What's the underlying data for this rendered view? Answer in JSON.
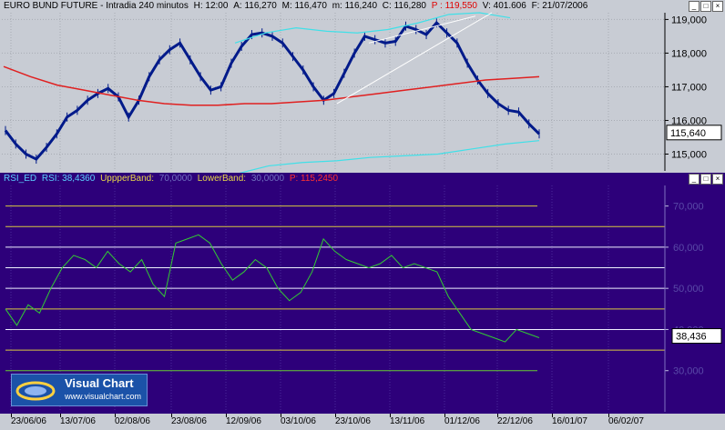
{
  "price_pane": {
    "title": "EURO BUND FUTURE - Intradia 240 minutos",
    "h_label": "H: 12:00",
    "a_label": "A: 116,270",
    "mx_label": "M: 116,470",
    "m_label": "m: 116,240",
    "c_label": "C: 116,280",
    "p_label": "P : 119,550",
    "v_label": "V: 401.606",
    "f_label": "F: 21/07/2006",
    "current_value": "115,640",
    "colors": {
      "candles": "#001a8a",
      "ma": "#e02020",
      "bands": "#40e0e8",
      "trendlines": "#ffffff",
      "background": "#c8ccd4"
    }
  },
  "rsi_pane": {
    "title": "RSI_ED",
    "rsi_label": "RSI: 38,4360",
    "upper_label": "UppperBand:",
    "upper_value": "70,0000",
    "lower_label": "LowerBand:",
    "lower_value": "30,0000",
    "p_label": "P: 115,2450",
    "current_value": "38,436",
    "colors": {
      "line": "#33cc33",
      "hlines_yellow": "#d8c840",
      "hlines_white": "#f0f0ff",
      "hlines_green": "#66cc33",
      "background": "#2d007a"
    }
  },
  "logo": {
    "title": "Visual Chart",
    "url": "www.visualchart.com"
  },
  "window_buttons": {
    "minimize": "_",
    "maximize": "□",
    "close": "×"
  },
  "chart_data": [
    {
      "type": "line",
      "title": "EURO BUND FUTURE - Intradia 240 minutos",
      "xlabel": "",
      "ylabel": "",
      "x_ticks": [
        "23/06/06",
        "13/07/06",
        "02/08/06",
        "23/08/06",
        "12/09/06",
        "03/10/06",
        "23/10/06",
        "13/11/06",
        "01/12/06",
        "22/12/06",
        "16/01/07",
        "06/02/07"
      ],
      "y_ticks": [
        "115,000",
        "116,000",
        "117,000",
        "118,000",
        "119,000"
      ],
      "ylim": [
        114.5,
        119.2
      ],
      "grid": true,
      "series": [
        {
          "values": [
            115.7,
            115.3,
            115.0,
            114.85,
            115.2,
            115.6,
            116.1,
            116.3,
            116.6,
            116.8,
            116.95,
            116.7,
            116.1,
            116.6,
            117.3,
            117.8,
            118.1,
            118.3,
            117.8,
            117.3,
            116.9,
            117.0,
            117.7,
            118.2,
            118.55,
            118.6,
            118.5,
            118.3,
            117.9,
            117.5,
            117.0,
            116.6,
            116.8,
            117.4,
            118.0,
            118.5,
            118.4,
            118.3,
            118.35,
            118.8,
            118.7,
            118.55,
            118.9,
            118.6,
            118.3,
            117.7,
            117.2,
            116.8,
            116.5,
            116.3,
            116.25,
            115.9,
            115.6
          ]
        },
        {
          "values": [
            117.6,
            117.3,
            117.05,
            116.9,
            116.75,
            116.6,
            116.5,
            116.45,
            116.45,
            116.5,
            116.5,
            116.55,
            116.6,
            116.7,
            116.8,
            116.9,
            117.0,
            117.1,
            117.2,
            117.25,
            117.3
          ]
        },
        {
          "values": [
            118.3,
            118.6,
            118.75,
            118.65,
            118.6,
            118.7,
            118.9,
            119.15,
            119.2,
            119.05
          ]
        },
        {
          "values": [
            114.4,
            114.65,
            114.75,
            114.8,
            114.9,
            114.95,
            115.0,
            115.15,
            115.3,
            115.4
          ]
        }
      ]
    },
    {
      "type": "line",
      "title": "RSI_ED",
      "xlabel": "",
      "ylabel": "",
      "y_ticks": [
        "30,000",
        "40,000",
        "50,000",
        "60,000",
        "70,000"
      ],
      "ylim": [
        20,
        75
      ],
      "grid": true,
      "bands": [
        70,
        30
      ],
      "series": [
        {
          "name": "RSI",
          "values": [
            45,
            41,
            46,
            44,
            50,
            55,
            58,
            57,
            55,
            59,
            56,
            54,
            57,
            51,
            48,
            61,
            62,
            63,
            61,
            56,
            52,
            54,
            57,
            55,
            50,
            47,
            49,
            54,
            62,
            59,
            57,
            56,
            55,
            56,
            58,
            55,
            56,
            55,
            54,
            48,
            44,
            40,
            39,
            38,
            37,
            40,
            39,
            38
          ]
        }
      ]
    }
  ],
  "x_axis": {
    "labels": [
      "23/06/06",
      "13/07/06",
      "02/08/06",
      "23/08/06",
      "12/09/06",
      "03/10/06",
      "23/10/06",
      "13/11/06",
      "01/12/06",
      "22/12/06",
      "16/01/07",
      "06/02/07"
    ]
  }
}
